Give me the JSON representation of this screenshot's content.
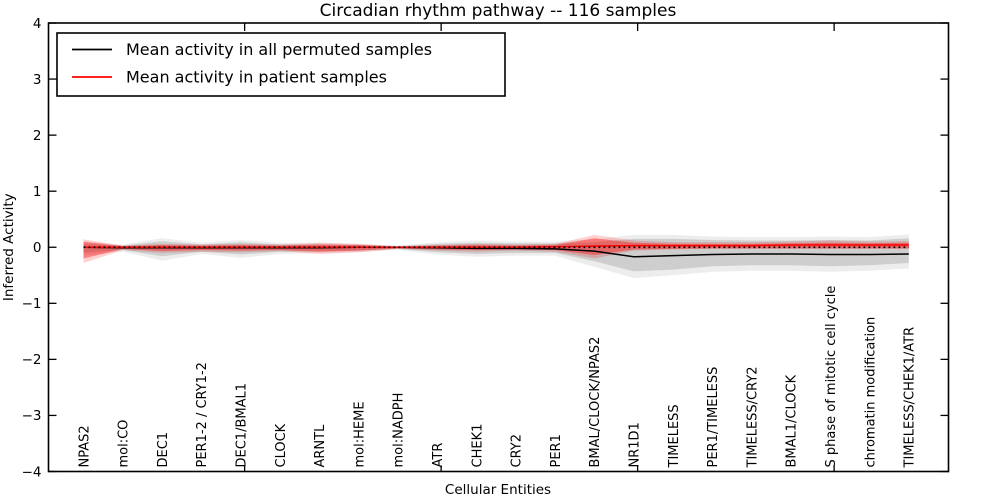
{
  "title": "Circadian rhythm pathway -- 116 samples",
  "legend": {
    "items": [
      {
        "label": "Mean activity in all permuted samples",
        "color": "#000000"
      },
      {
        "label": "Mean activity in patient samples",
        "color": "#ff0000"
      }
    ]
  },
  "chart_data": {
    "type": "line",
    "title": "Circadian rhythm pathway -- 116 samples",
    "xlabel": "Cellular Entities",
    "ylabel": "Inferred Activity",
    "ylim": [
      -4,
      4
    ],
    "yticks": [
      -4,
      -3,
      -2,
      -1,
      0,
      1,
      2,
      3,
      4
    ],
    "grid": false,
    "legend_position": "upper left",
    "reference_line": {
      "y": 0,
      "style": "dotted",
      "color": "#000000"
    },
    "xtick_positions": [
      4.1,
      9.1,
      14.1,
      19.1
    ],
    "categories": [
      "NPAS2",
      "mol:CO",
      "DEC1",
      "PER1-2 / CRY1-2",
      "DEC1/BMAL1",
      "CLOCK",
      "ARNTL",
      "mol:HEME",
      "mol:NADPH",
      "ATR",
      "CHEK1",
      "CRY2",
      "PER1",
      "BMAL/CLOCK/NPAS2",
      "NR1D1",
      "TIMELESS",
      "PER1/TIMELESS",
      "TIMELESS/CRY2",
      "BMAL1/CLOCK",
      "S phase of mitotic cell cycle",
      "chromatin modification",
      "TIMELESS/CHEK1/ATR"
    ],
    "series": [
      {
        "name": "Mean activity in all permuted samples",
        "color": "#000000",
        "values": [
          0,
          -0.01,
          -0.01,
          -0.01,
          -0.01,
          -0.01,
          -0.01,
          0,
          0,
          -0.01,
          -0.02,
          -0.02,
          -0.03,
          -0.07,
          -0.17,
          -0.15,
          -0.13,
          -0.12,
          -0.12,
          -0.13,
          -0.13,
          -0.12
        ],
        "band_inner": {
          "upper": [
            0.06,
            0.03,
            0.11,
            0.05,
            0.09,
            0.05,
            0.05,
            0.04,
            0.02,
            0.06,
            0.08,
            0.07,
            0.07,
            0.09,
            0.15,
            0.15,
            0.13,
            0.12,
            0.12,
            0.13,
            0.12,
            0.16
          ],
          "lower": [
            -0.1,
            -0.05,
            -0.16,
            -0.08,
            -0.13,
            -0.08,
            -0.07,
            -0.06,
            -0.03,
            -0.09,
            -0.12,
            -0.1,
            -0.1,
            -0.25,
            -0.43,
            -0.4,
            -0.34,
            -0.32,
            -0.32,
            -0.34,
            -0.32,
            -0.28
          ]
        },
        "band_outer": {
          "upper": [
            0.09,
            0.05,
            0.16,
            0.08,
            0.13,
            0.08,
            0.08,
            0.06,
            0.03,
            0.09,
            0.12,
            0.1,
            0.1,
            0.14,
            0.22,
            0.22,
            0.19,
            0.18,
            0.18,
            0.19,
            0.18,
            0.23
          ],
          "lower": [
            -0.15,
            -0.08,
            -0.24,
            -0.12,
            -0.19,
            -0.12,
            -0.1,
            -0.09,
            -0.05,
            -0.13,
            -0.17,
            -0.15,
            -0.15,
            -0.35,
            -0.55,
            -0.5,
            -0.44,
            -0.42,
            -0.42,
            -0.44,
            -0.42,
            -0.38
          ]
        },
        "band_color_inner": "rgba(0,0,0,0.13)",
        "band_color_outer": "rgba(0,0,0,0.07)"
      },
      {
        "name": "Mean activity in patient samples",
        "color": "#ff0000",
        "values": [
          0,
          0,
          0,
          0,
          0,
          0,
          0,
          0,
          0,
          0,
          0,
          0,
          0.01,
          0.02,
          0.03,
          0.03,
          0.03,
          0.03,
          0.04,
          0.04,
          0.04,
          0.04
        ],
        "band_inner": {
          "upper": [
            0.1,
            0.02,
            0.04,
            0.03,
            0.04,
            0.03,
            0.05,
            0.04,
            0.01,
            0.03,
            0.04,
            0.03,
            0.04,
            0.16,
            0.08,
            0.06,
            0.06,
            0.06,
            0.07,
            0.08,
            0.07,
            0.08
          ],
          "lower": [
            -0.2,
            -0.03,
            -0.07,
            -0.05,
            -0.06,
            -0.05,
            -0.08,
            -0.06,
            -0.02,
            -0.04,
            -0.05,
            -0.04,
            -0.05,
            -0.14,
            -0.04,
            -0.03,
            -0.02,
            -0.02,
            -0.02,
            -0.02,
            -0.02,
            -0.02
          ]
        },
        "band_outer": {
          "upper": [
            0.14,
            0.03,
            0.06,
            0.05,
            0.06,
            0.05,
            0.08,
            0.06,
            0.02,
            0.04,
            0.06,
            0.05,
            0.06,
            0.22,
            0.12,
            0.09,
            0.09,
            0.09,
            0.1,
            0.12,
            0.1,
            0.11
          ],
          "lower": [
            -0.28,
            -0.05,
            -0.1,
            -0.08,
            -0.09,
            -0.07,
            -0.12,
            -0.09,
            -0.03,
            -0.06,
            -0.08,
            -0.06,
            -0.08,
            -0.2,
            -0.06,
            -0.04,
            -0.03,
            -0.03,
            -0.03,
            -0.03,
            -0.03,
            -0.03
          ]
        },
        "band_color_inner": "rgba(255,0,0,0.38)",
        "band_color_outer": "rgba(255,0,0,0.18)"
      }
    ]
  }
}
